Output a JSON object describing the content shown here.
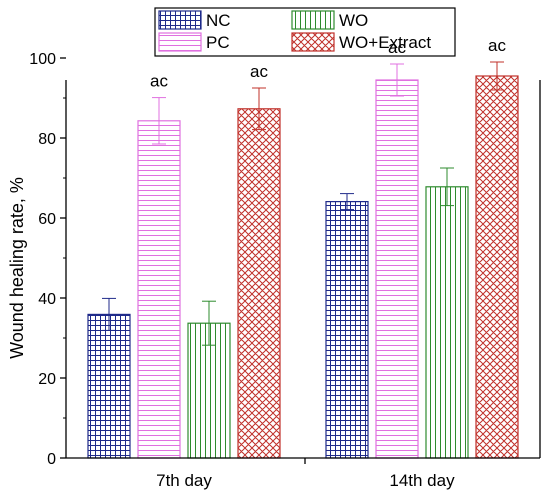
{
  "chart_data": {
    "type": "bar",
    "categories": [
      "7th day",
      "14th day"
    ],
    "ylabel": "Wound healing rate, %",
    "xlabel": "",
    "ylim": [
      0,
      100
    ],
    "yticks": [
      0,
      20,
      40,
      60,
      80,
      100
    ],
    "grid": false,
    "legend_position": "top",
    "series": [
      {
        "name": "NC",
        "values": [
          35.9,
          64.1
        ],
        "errors": [
          4.0,
          2.0
        ],
        "annotations": [
          "",
          ""
        ],
        "color": "#1f2a8a",
        "pattern": "grid"
      },
      {
        "name": "PC",
        "values": [
          84.3,
          94.5
        ],
        "errors": [
          5.8,
          4.0
        ],
        "annotations": [
          "ac",
          "ac"
        ],
        "color": "#e070e0",
        "pattern": "horizontal"
      },
      {
        "name": "WO",
        "values": [
          33.7,
          67.8
        ],
        "errors": [
          5.5,
          4.7
        ],
        "annotations": [
          "",
          ""
        ],
        "color": "#2e8b2e",
        "pattern": "vertical"
      },
      {
        "name": "WO+Extract",
        "values": [
          87.3,
          95.5
        ],
        "errors": [
          5.2,
          3.5
        ],
        "annotations": [
          "ac",
          "ac"
        ],
        "color": "#c0302a",
        "pattern": "crosshatch"
      }
    ]
  }
}
